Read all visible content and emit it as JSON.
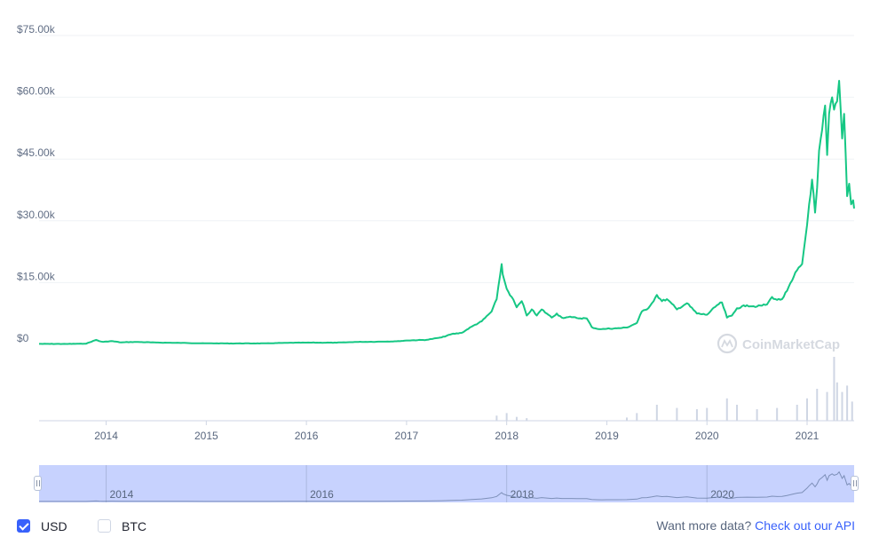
{
  "colors": {
    "price_line": "#16c784",
    "volume": "#cfd6e4",
    "navigator_fill": "#c7d2fe",
    "accent": "#3861fb"
  },
  "chart_data": {
    "type": "line",
    "title": "",
    "xlabel": "",
    "ylabel": "",
    "y_tick_labels": [
      "$0",
      "$15.00k",
      "$30.00k",
      "$45.00k",
      "$60.00k",
      "$75.00k"
    ],
    "y_ticks": [
      0,
      15000,
      30000,
      45000,
      60000,
      75000
    ],
    "ylim": [
      0,
      75000
    ],
    "x_tick_labels": [
      "2014",
      "2015",
      "2016",
      "2017",
      "2018",
      "2019",
      "2020",
      "2021"
    ],
    "x_ticks": [
      2014,
      2015,
      2016,
      2017,
      2018,
      2019,
      2020,
      2021
    ],
    "xlim": [
      2013.33,
      2021.47
    ],
    "grid": true,
    "series": [
      {
        "x": [
          2013.33,
          2013.6,
          2013.8,
          2013.9,
          2013.93,
          2013.97,
          2014.05,
          2014.15,
          2014.3,
          2014.5,
          2014.8,
          2015.0,
          2015.3,
          2015.6,
          2015.85,
          2016.0,
          2016.3,
          2016.5,
          2016.7,
          2016.9,
          2017.0,
          2017.2,
          2017.35,
          2017.45,
          2017.55,
          2017.65,
          2017.75,
          2017.85,
          2017.9,
          2017.95,
          2017.96,
          2018.0,
          2018.05,
          2018.1,
          2018.15,
          2018.2,
          2018.25,
          2018.3,
          2018.35,
          2018.4,
          2018.45,
          2018.5,
          2018.55,
          2018.6,
          2018.65,
          2018.7,
          2018.8,
          2018.85,
          2018.9,
          2018.95,
          2019.0,
          2019.1,
          2019.2,
          2019.3,
          2019.35,
          2019.4,
          2019.45,
          2019.5,
          2019.55,
          2019.6,
          2019.7,
          2019.8,
          2019.9,
          2020.0,
          2020.1,
          2020.15,
          2020.2,
          2020.25,
          2020.3,
          2020.4,
          2020.5,
          2020.6,
          2020.65,
          2020.7,
          2020.75,
          2020.8,
          2020.85,
          2020.9,
          2020.95,
          2021.0,
          2021.02,
          2021.05,
          2021.08,
          2021.1,
          2021.12,
          2021.15,
          2021.18,
          2021.2,
          2021.22,
          2021.25,
          2021.27,
          2021.3,
          2021.32,
          2021.35,
          2021.37,
          2021.4,
          2021.42,
          2021.44,
          2021.46,
          2021.47
        ],
        "values": [
          120,
          110,
          180,
          1100,
          800,
          600,
          800,
          500,
          600,
          450,
          350,
          250,
          230,
          250,
          400,
          430,
          420,
          600,
          650,
          750,
          950,
          1100,
          1700,
          2500,
          2800,
          4300,
          5600,
          8000,
          11000,
          19500,
          17000,
          13500,
          11500,
          9000,
          10500,
          7000,
          8500,
          7000,
          8500,
          7500,
          6500,
          7500,
          6500,
          6600,
          6600,
          6400,
          6300,
          4200,
          3800,
          3700,
          3800,
          3900,
          4100,
          5200,
          8000,
          8500,
          10000,
          12000,
          10500,
          11000,
          8500,
          10000,
          7500,
          7200,
          9500,
          10200,
          6500,
          7000,
          8800,
          9500,
          9200,
          9700,
          11500,
          10800,
          11000,
          13000,
          15500,
          18000,
          19500,
          29000,
          34000,
          40000,
          32000,
          38000,
          47000,
          52000,
          58000,
          46000,
          56000,
          60000,
          57000,
          59000,
          64000,
          50000,
          56000,
          36000,
          39000,
          34000,
          35000,
          33000
        ]
      }
    ],
    "volume_series": {
      "x": [
        2017.9,
        2018.0,
        2018.1,
        2018.2,
        2019.2,
        2019.3,
        2019.5,
        2019.7,
        2019.9,
        2020.0,
        2020.2,
        2020.3,
        2020.5,
        2020.7,
        2020.9,
        2021.0,
        2021.1,
        2021.2,
        2021.27,
        2021.3,
        2021.35,
        2021.4,
        2021.45
      ],
      "values": [
        0.08,
        0.12,
        0.06,
        0.04,
        0.05,
        0.12,
        0.25,
        0.2,
        0.18,
        0.2,
        0.35,
        0.25,
        0.18,
        0.2,
        0.25,
        0.35,
        0.5,
        0.45,
        1.0,
        0.6,
        0.45,
        0.55,
        0.3
      ]
    },
    "navigator_tick_labels": [
      "2014",
      "2016",
      "2018",
      "2020"
    ],
    "navigator_ticks": [
      2014,
      2016,
      2018,
      2020
    ]
  },
  "watermark": {
    "text": "CoinMarketCap"
  },
  "currency_toggle": {
    "usd_label": "USD",
    "usd_checked": true,
    "btc_label": "BTC",
    "btc_checked": false
  },
  "footer_link": {
    "prompt": "Want more data?",
    "link_text": "Check out our API"
  }
}
